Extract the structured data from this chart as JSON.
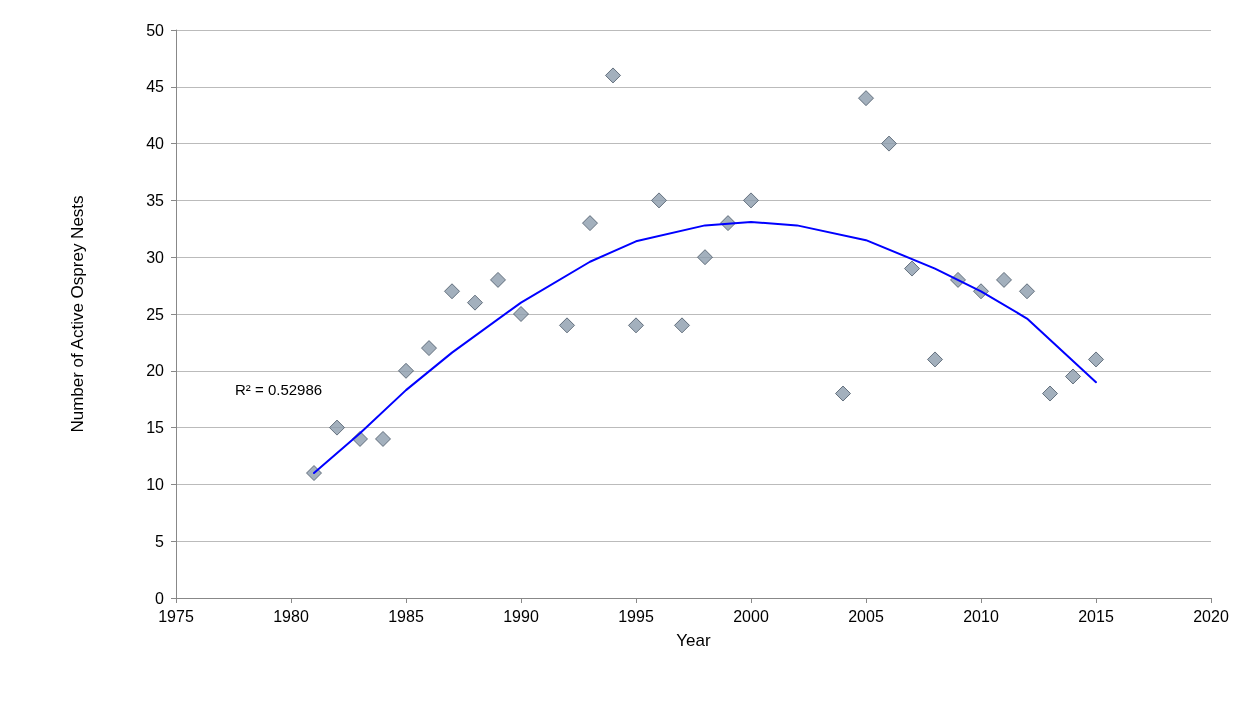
{
  "chart_data": {
    "type": "scatter",
    "xlabel": "Year",
    "ylabel": "Number of Active Osprey Nests",
    "xlim": [
      1975,
      2020
    ],
    "xticks": [
      1975,
      1980,
      1985,
      1990,
      1995,
      2000,
      2005,
      2010,
      2015,
      2020
    ],
    "ylim": [
      0,
      50
    ],
    "yticks": [
      0,
      5,
      10,
      15,
      20,
      25,
      30,
      35,
      40,
      45,
      50
    ],
    "grid": "y",
    "marker": "diamond",
    "annotations": [
      "R² = 0.52986"
    ],
    "series": [
      {
        "color": "#8c9cac",
        "x": [
          1981,
          1982,
          1983,
          1984,
          1985,
          1986,
          1987,
          1988,
          1989,
          1990,
          1992,
          1993,
          1994,
          1995,
          1996,
          1997,
          1998,
          1999,
          2000,
          2004,
          2005,
          2006,
          2007,
          2008,
          2009,
          2010,
          2011,
          2012,
          2013,
          2014,
          2015
        ],
        "values": [
          11,
          15,
          14,
          14,
          20,
          22,
          27,
          26,
          28,
          25,
          24,
          33,
          46,
          24,
          35,
          24,
          30,
          33,
          35,
          18,
          44,
          40,
          29,
          21,
          28,
          27,
          28,
          27,
          18,
          19.5,
          21
        ]
      },
      {
        "type": "line",
        "color": "#0000ff",
        "marker": "none",
        "line_style": "solid",
        "x": [
          1981,
          1983,
          1985,
          1987,
          1990,
          1993,
          1995,
          1998,
          2000,
          2002,
          2005,
          2008,
          2010,
          2012,
          2015
        ],
        "values": [
          11,
          14.5,
          18.3,
          21.6,
          26,
          29.6,
          31.4,
          32.8,
          33.1,
          32.8,
          31.5,
          29,
          27,
          24.6,
          19
        ]
      }
    ]
  }
}
